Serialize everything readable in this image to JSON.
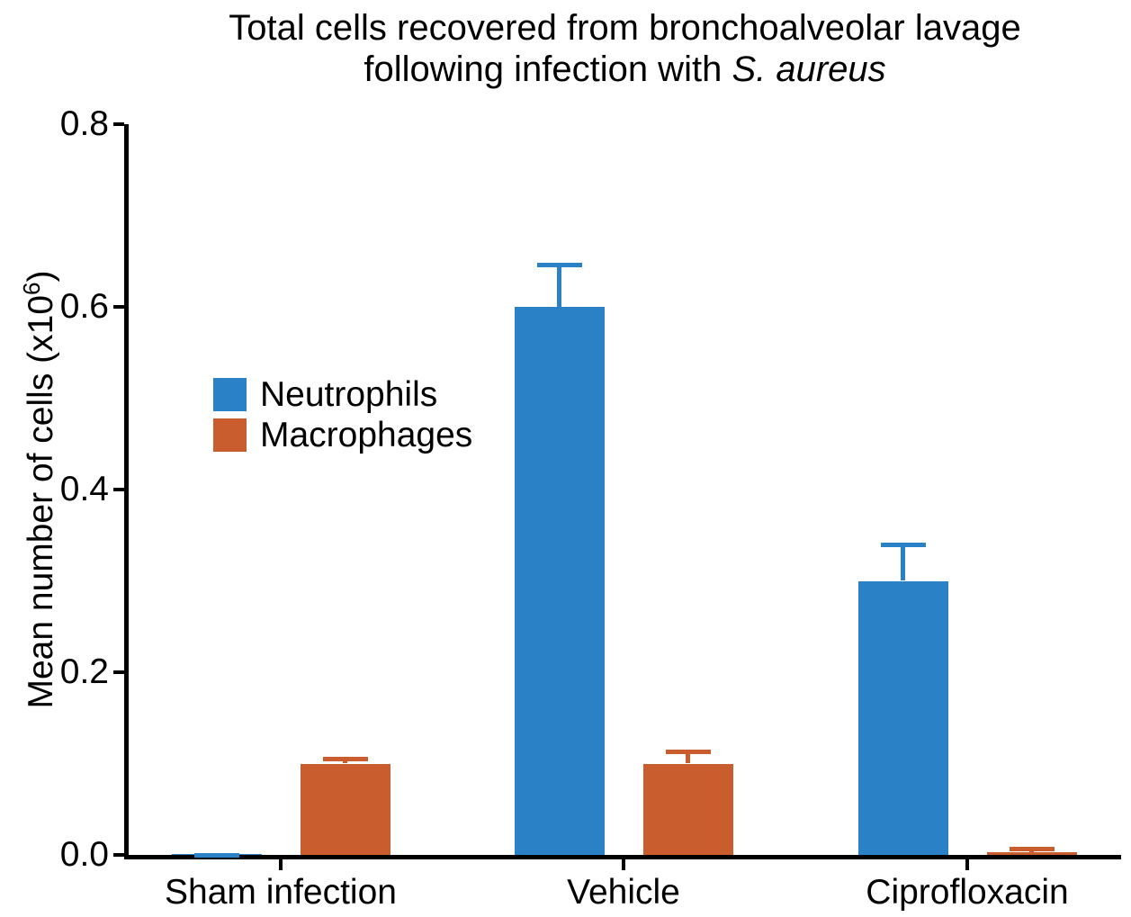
{
  "title": {
    "line1": "Total cells recovered from bronchoalveolar lavage",
    "line2_prefix": "following infection with ",
    "line2_italic": "S. aureus"
  },
  "y_axis": {
    "label_prefix": "Mean number of cells (x10",
    "label_sup": "6",
    "label_suffix": ")"
  },
  "chart_data": {
    "type": "bar",
    "title": "Total cells recovered from bronchoalveolar lavage following infection with S. aureus",
    "categories": [
      "Sham infection",
      "Vehicle",
      "Ciprofloxacin"
    ],
    "series": [
      {
        "name": "Neutrophils",
        "color": "#2B81C5",
        "values": [
          0.001,
          0.6,
          0.3
        ],
        "upper_errors": [
          0.001,
          0.048,
          0.042
        ]
      },
      {
        "name": "Macrophages",
        "color": "#C95D2E",
        "values": [
          0.1,
          0.1,
          0.003
        ],
        "upper_errors": [
          0.007,
          0.015,
          0.006
        ]
      }
    ],
    "xlabel": "",
    "ylabel": "Mean number of cells (x10^6)",
    "ylim": [
      0,
      0.8
    ],
    "ytick_labels": [
      "0.0",
      "0.2",
      "0.4",
      "0.6",
      "0.8"
    ],
    "error_bars": "upper only, with caps",
    "legend_position": "upper left inside plot",
    "grid": false,
    "background": "#ffffff"
  }
}
